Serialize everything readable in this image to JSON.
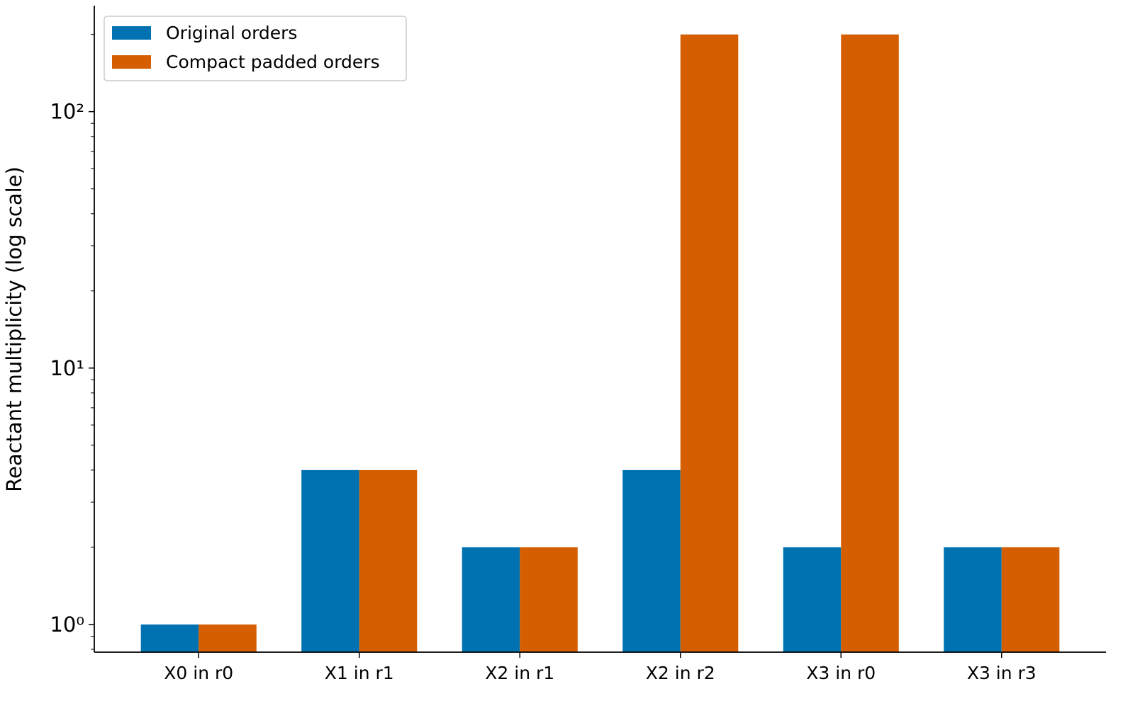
{
  "chart_data": {
    "type": "bar",
    "y_label": "Reactant multiplicity (log scale)",
    "categories": [
      "X0 in r0",
      "X1 in r1",
      "X2 in r1",
      "X2 in r2",
      "X3 in r0",
      "X3 in r3"
    ],
    "series": [
      {
        "name": "Original orders",
        "color": "#0072b2",
        "values": [
          1,
          4,
          2,
          4,
          2,
          2
        ]
      },
      {
        "name": "Compact padded orders",
        "color": "#d55e00",
        "values": [
          1,
          4,
          2,
          200,
          200,
          2
        ]
      }
    ],
    "yscale": "log",
    "ylim": [
      0.78,
      259
    ],
    "yticks": [
      {
        "value": 1,
        "label": "10⁰"
      },
      {
        "value": 10,
        "label": "10¹"
      },
      {
        "value": 100,
        "label": "10²"
      }
    ],
    "yminorticks": [
      0.8,
      0.9,
      2,
      3,
      4,
      5,
      6,
      7,
      8,
      9,
      20,
      30,
      40,
      50,
      60,
      70,
      80,
      90,
      200
    ],
    "grid": false,
    "legend": "upper left"
  }
}
